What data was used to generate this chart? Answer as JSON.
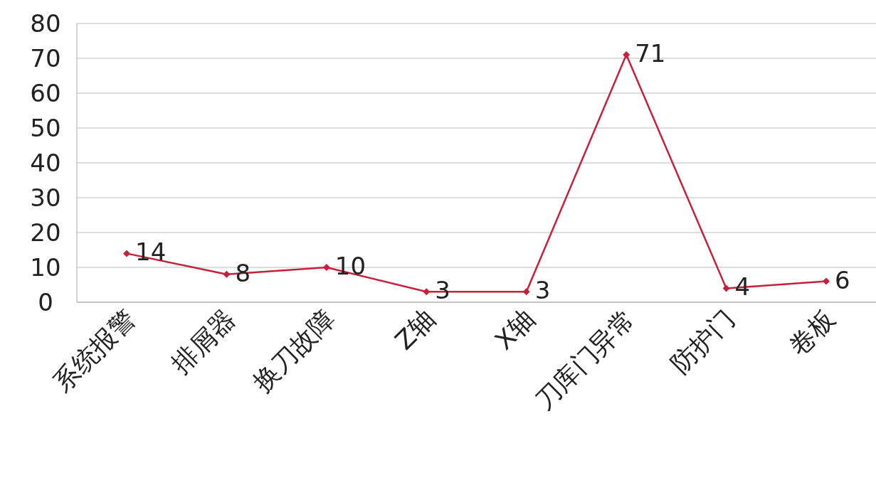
{
  "chart_data": {
    "type": "line",
    "categories": [
      "系统报警",
      "排屑器",
      "换刀故障",
      "Z轴",
      "X轴",
      "刀库门异常",
      "防护门",
      "卷板"
    ],
    "series": [
      {
        "color": "#c8203a",
        "values": [
          14,
          8,
          10,
          3,
          3,
          71,
          4,
          6
        ]
      }
    ],
    "ylim": [
      0,
      80
    ],
    "yticks": [
      0,
      10,
      20,
      30,
      40,
      50,
      60,
      70,
      80
    ],
    "grid": "y",
    "legend": false,
    "marker": "diamond",
    "line_style": "solid",
    "data_labels": true
  }
}
